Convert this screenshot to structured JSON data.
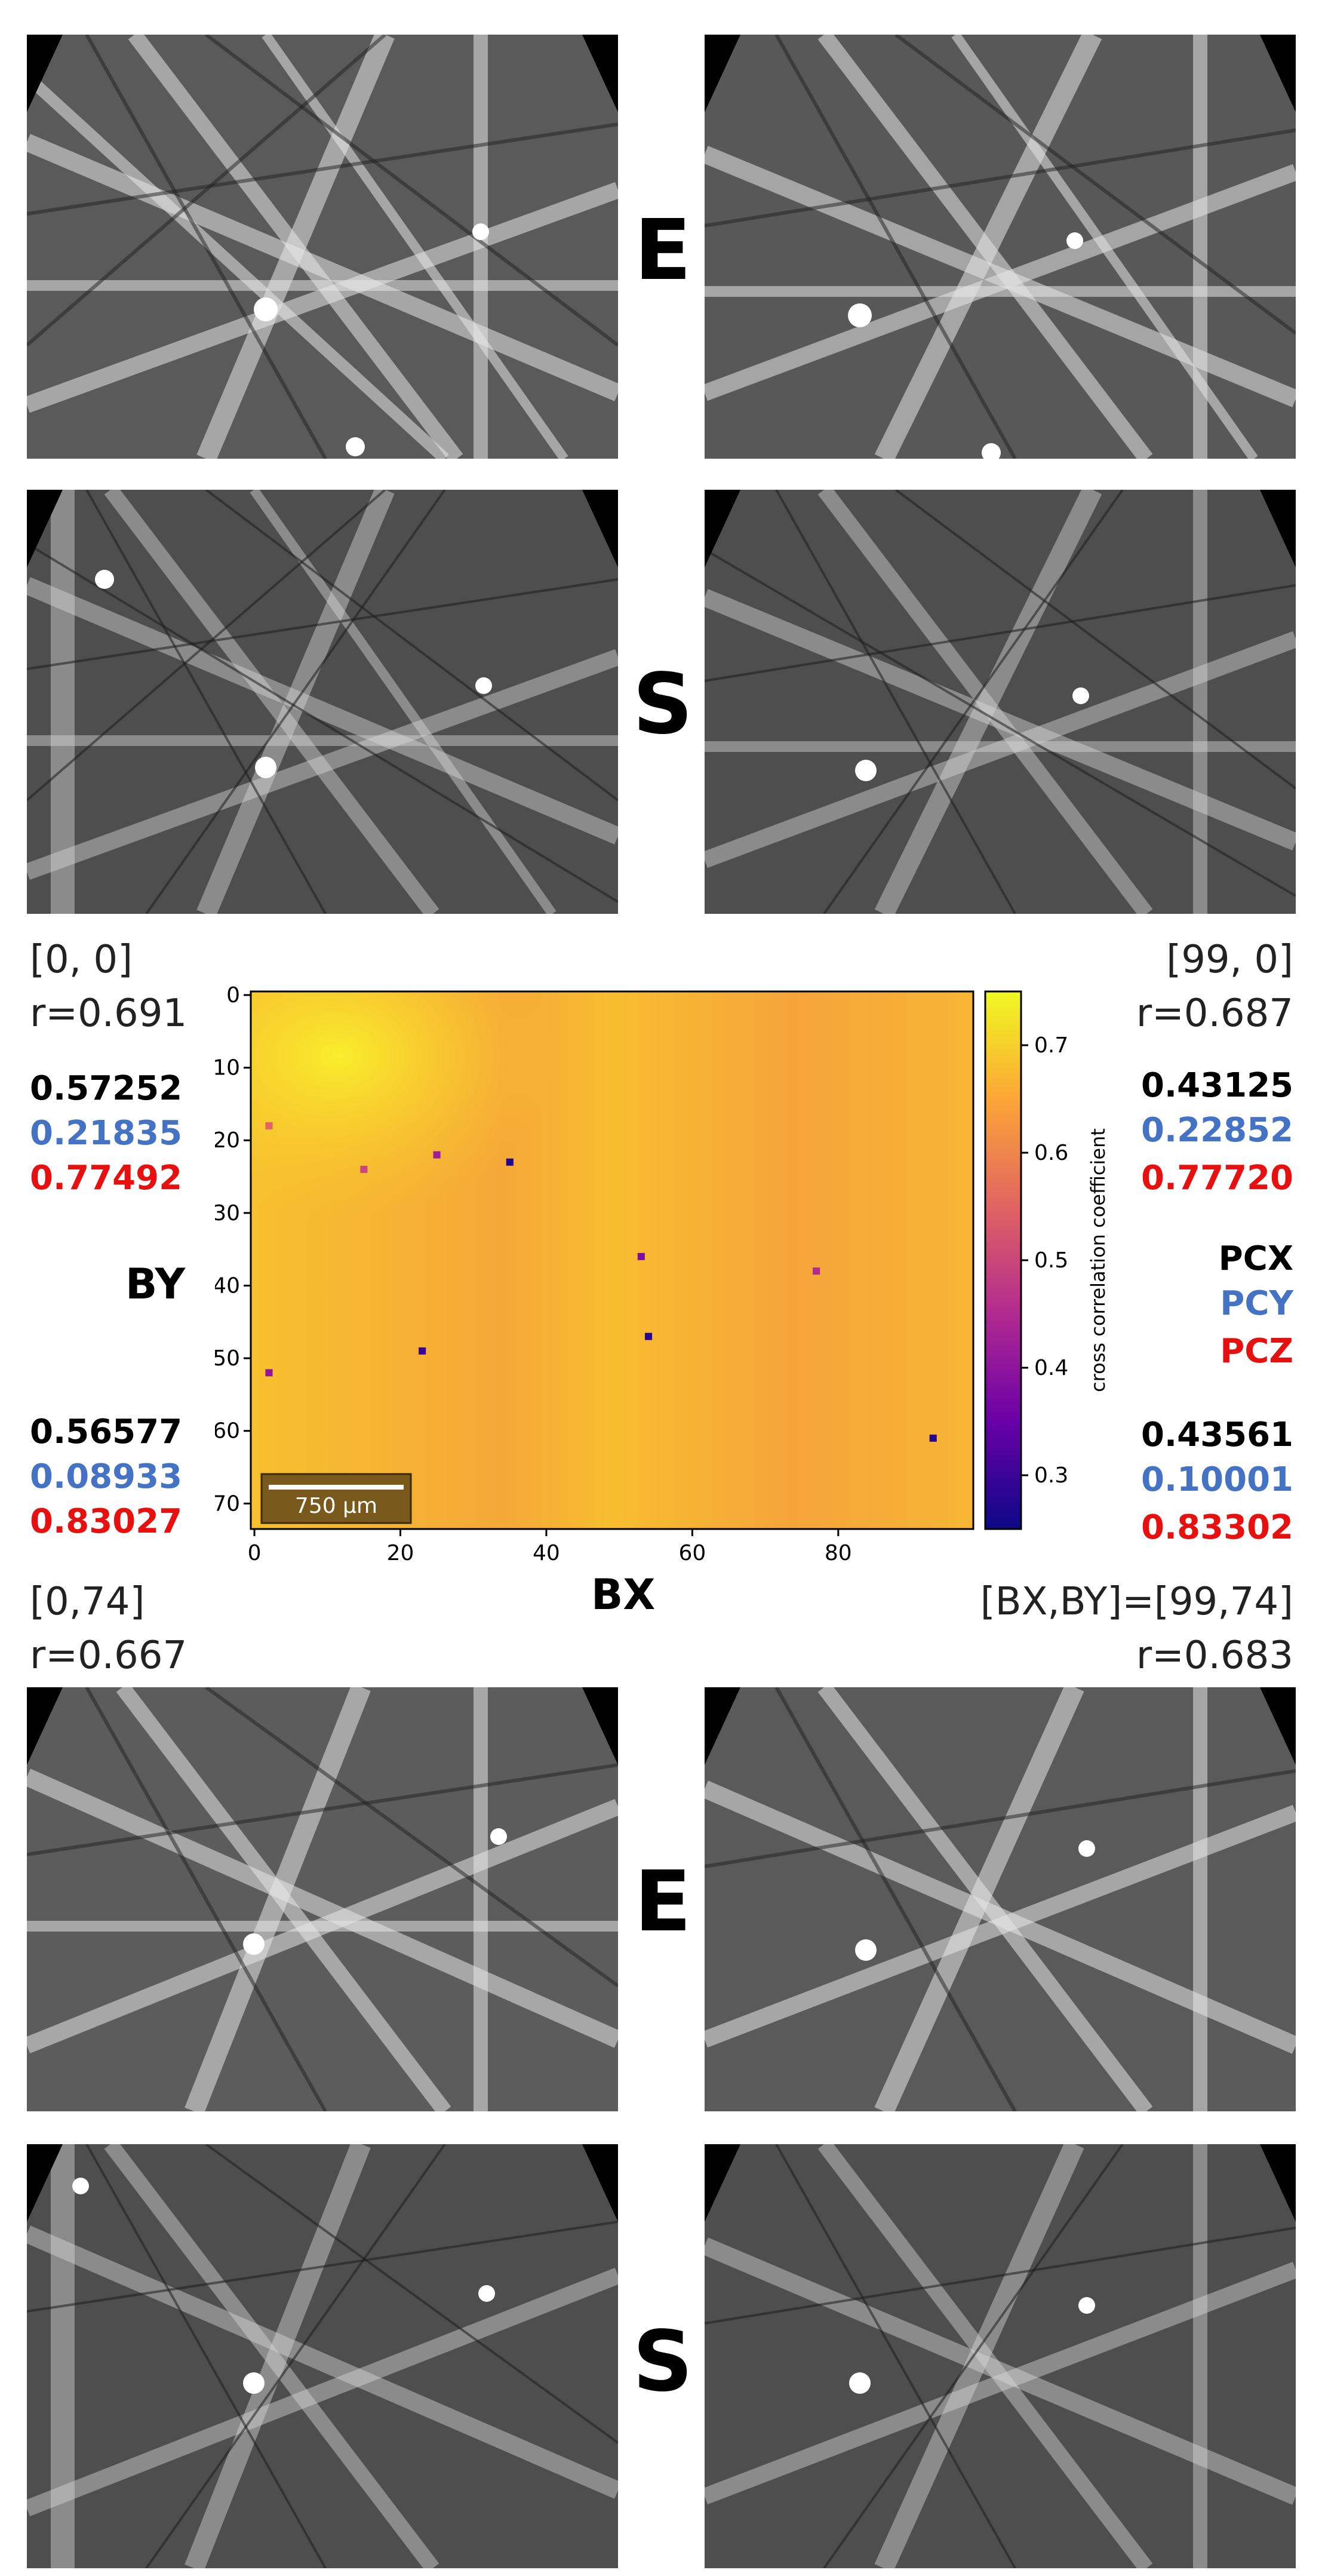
{
  "labels": {
    "experimental": "E",
    "simulated_top": "S",
    "experimental_bottom": "E",
    "simulated_bottom": "S",
    "bx_axis": "BX",
    "by_axis": "BY"
  },
  "corners": {
    "top_left": {
      "position": "[0, 0]",
      "r": "r=0.691",
      "pcx": "0.57252",
      "pcy": "0.21835",
      "pcz": "0.77492"
    },
    "top_right": {
      "position": "[99, 0]",
      "r": "r=0.687",
      "pcx": "0.43125",
      "pcy": "0.22852",
      "pcz": "0.77720"
    },
    "bottom_left": {
      "position": "[0,74]",
      "r": "r=0.667",
      "pcx": "0.56577",
      "pcy": "0.08933",
      "pcz": "0.83027"
    },
    "bottom_right": {
      "position": "[BX,BY]=[99,74]",
      "r": "r=0.683",
      "pcx": "0.43561",
      "pcy": "0.10001",
      "pcz": "0.83302"
    }
  },
  "legend": {
    "pcx": "PCX",
    "pcy": "PCY",
    "pcz": "PCZ"
  },
  "colors": {
    "pcx": "#000000",
    "pcy": "#4472c4",
    "pcz": "#e8100f"
  },
  "chart_data": {
    "type": "heatmap",
    "title": "",
    "xlabel": "BX",
    "ylabel": "BY",
    "x_ticks": [
      "0",
      "20",
      "40",
      "60",
      "80"
    ],
    "y_ticks": [
      "0",
      "10",
      "20",
      "30",
      "40",
      "50",
      "60",
      "70"
    ],
    "xlim": [
      0,
      99
    ],
    "ylim": [
      0,
      74
    ],
    "colorbar_label": "cross correlation coefficient",
    "colorbar_ticks": [
      "0.3",
      "0.4",
      "0.5",
      "0.6",
      "0.7"
    ],
    "colorbar_range": [
      0.25,
      0.75
    ],
    "scale_bar": "750 µm",
    "outliers": [
      {
        "x": 35,
        "y": 23,
        "value": 0.27
      },
      {
        "x": 25,
        "y": 22,
        "value": 0.42
      },
      {
        "x": 53,
        "y": 36,
        "value": 0.38
      },
      {
        "x": 54,
        "y": 47,
        "value": 0.28
      },
      {
        "x": 23,
        "y": 49,
        "value": 0.3
      },
      {
        "x": 2,
        "y": 52,
        "value": 0.4
      },
      {
        "x": 77,
        "y": 38,
        "value": 0.45
      },
      {
        "x": 93,
        "y": 61,
        "value": 0.28
      },
      {
        "x": 15,
        "y": 24,
        "value": 0.5
      },
      {
        "x": 2,
        "y": 18,
        "value": 0.55
      }
    ]
  }
}
